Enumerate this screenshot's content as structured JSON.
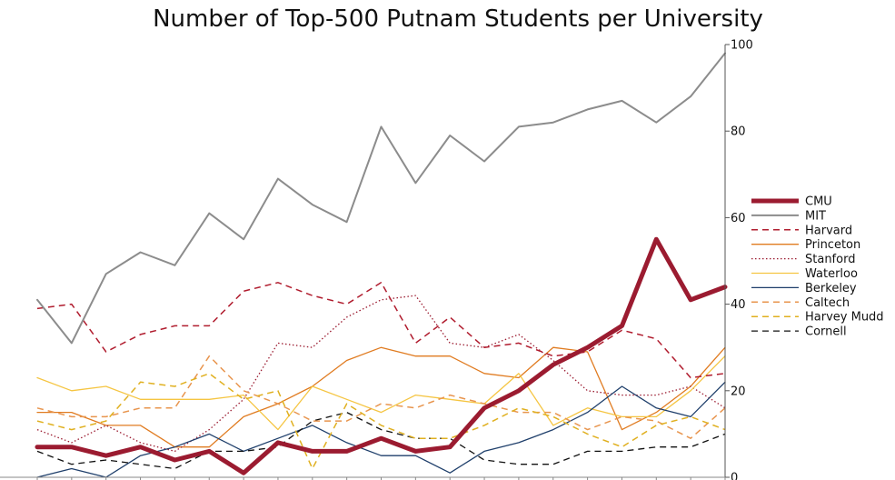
{
  "chart_data": {
    "type": "line",
    "title": "Number of Top-500 Putnam Students per University",
    "xlabel": "",
    "ylabel": "",
    "ylim": [
      0,
      100
    ],
    "yticks": [
      "0",
      "20",
      "40",
      "60",
      "80",
      "100"
    ],
    "y_axis_side": "right",
    "grid": false,
    "legend_position": "right",
    "series": [
      {
        "name": "CMU",
        "color": "#9b1b30",
        "style": "solid",
        "width": 5,
        "values": [
          7,
          7,
          5,
          7,
          4,
          6,
          1,
          8,
          6,
          6,
          9,
          6,
          7,
          16,
          20,
          26,
          30,
          35,
          55,
          41,
          44
        ]
      },
      {
        "name": "MIT",
        "color": "#8c8c8c",
        "style": "solid",
        "width": 2,
        "values": [
          41,
          31,
          47,
          52,
          49,
          61,
          55,
          69,
          63,
          59,
          81,
          68,
          79,
          73,
          81,
          82,
          85,
          87,
          82,
          88,
          98
        ]
      },
      {
        "name": "Harvard",
        "color": "#b01c2e",
        "style": "dashed",
        "width": 1.5,
        "values": [
          39,
          40,
          29,
          33,
          35,
          35,
          43,
          45,
          42,
          40,
          45,
          31,
          37,
          30,
          31,
          28,
          29,
          34,
          32,
          23,
          24
        ]
      },
      {
        "name": "Princeton",
        "color": "#e07b20",
        "style": "solid",
        "width": 1.3,
        "values": [
          15,
          15,
          12,
          12,
          7,
          7,
          14,
          17,
          21,
          27,
          30,
          28,
          28,
          24,
          23,
          30,
          29,
          11,
          15,
          21,
          30
        ]
      },
      {
        "name": "Stanford",
        "color": "#9b1b30",
        "style": "dotted",
        "width": 1.3,
        "values": [
          11,
          8,
          12,
          8,
          6,
          11,
          18,
          31,
          30,
          37,
          41,
          42,
          31,
          30,
          33,
          27,
          20,
          19,
          19,
          21,
          16
        ]
      },
      {
        "name": "Waterloo",
        "color": "#f5c542",
        "style": "solid",
        "width": 1.3,
        "values": [
          23,
          20,
          21,
          18,
          18,
          18,
          19,
          11,
          21,
          18,
          15,
          19,
          18,
          17,
          24,
          12,
          16,
          14,
          14,
          20,
          28
        ]
      },
      {
        "name": "Berkeley",
        "color": "#1f3f6b",
        "style": "solid",
        "width": 1.3,
        "values": [
          0,
          2,
          0,
          5,
          7,
          10,
          6,
          9,
          12,
          8,
          5,
          5,
          1,
          6,
          8,
          11,
          15,
          21,
          16,
          14,
          22
        ]
      },
      {
        "name": "Caltech",
        "color": "#e8954e",
        "style": "dashed",
        "width": 1.5,
        "values": [
          16,
          14,
          14,
          16,
          16,
          28,
          20,
          17,
          13,
          13,
          17,
          16,
          19,
          17,
          15,
          15,
          11,
          14,
          13,
          9,
          16
        ]
      },
      {
        "name": "Harvey Mudd",
        "color": "#e0b020",
        "style": "dashed",
        "width": 1.5,
        "values": [
          13,
          11,
          13,
          22,
          21,
          24,
          18,
          20,
          2,
          17,
          12,
          9,
          9,
          12,
          16,
          14,
          10,
          7,
          12,
          14,
          11
        ]
      },
      {
        "name": "Cornell",
        "color": "#111111",
        "style": "dashed",
        "width": 1.3,
        "values": [
          6,
          3,
          4,
          3,
          2,
          6,
          6,
          7,
          13,
          15,
          11,
          9,
          9,
          4,
          3,
          3,
          6,
          6,
          7,
          7,
          10
        ]
      }
    ]
  }
}
